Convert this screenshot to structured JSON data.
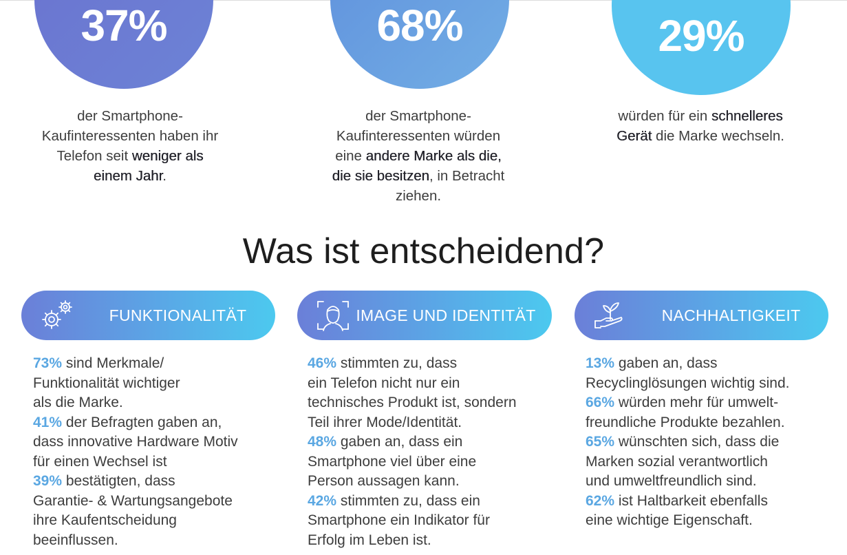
{
  "stats": [
    {
      "value": "37%",
      "lines": [
        [
          {
            "t": "der Smartphone-"
          }
        ],
        [
          {
            "t": "Kaufinteressenten haben ihr"
          }
        ],
        [
          {
            "t": "Telefon seit "
          },
          {
            "t": "weniger als",
            "b": true
          }
        ],
        [
          {
            "t": "einem Jahr",
            "b": true
          },
          {
            "t": "."
          }
        ]
      ]
    },
    {
      "value": "68%",
      "lines": [
        [
          {
            "t": "der Smartphone-"
          }
        ],
        [
          {
            "t": "Kaufinteressenten würden"
          }
        ],
        [
          {
            "t": "eine "
          },
          {
            "t": "andere Marke als die,",
            "b": true
          }
        ],
        [
          {
            "t": "die sie besitzen",
            "b": true
          },
          {
            "t": ", in Betracht"
          }
        ],
        [
          {
            "t": "ziehen."
          }
        ]
      ]
    },
    {
      "value": "29%",
      "lines": [
        [
          {
            "t": "würden für ein "
          },
          {
            "t": "schnelleres",
            "b": true
          }
        ],
        [
          {
            "t": "Gerät",
            "b": true
          },
          {
            "t": " die Marke wechseln."
          }
        ]
      ]
    }
  ],
  "heading": "Was ist entscheidend?",
  "categories": [
    {
      "label": "FUNKTIONALITÄT",
      "icon": "gears-icon",
      "lines": [
        [
          {
            "t": "73%",
            "n": true
          },
          {
            "t": " sind Merkmale/"
          }
        ],
        [
          {
            "t": "Funktionalität wichtiger"
          }
        ],
        [
          {
            "t": "als die Marke."
          }
        ],
        [
          {
            "t": "41%",
            "n": true
          },
          {
            "t": " der Befragten gaben an,"
          }
        ],
        [
          {
            "t": "dass innovative Hardware Motiv"
          }
        ],
        [
          {
            "t": "für einen Wechsel ist"
          }
        ],
        [
          {
            "t": "39%",
            "n": true
          },
          {
            "t": " bestätigten, dass"
          }
        ],
        [
          {
            "t": "Garantie- & Wartungsangebote"
          }
        ],
        [
          {
            "t": "ihre Kaufentscheidung"
          }
        ],
        [
          {
            "t": "beeinflussen."
          }
        ]
      ]
    },
    {
      "label": "IMAGE UND IDENTITÄT",
      "icon": "face-scan-icon",
      "lines": [
        [
          {
            "t": "46%",
            "n": true
          },
          {
            "t": " stimmten zu, dass"
          }
        ],
        [
          {
            "t": "ein Telefon nicht nur ein"
          }
        ],
        [
          {
            "t": "technisches Produkt ist, sondern"
          }
        ],
        [
          {
            "t": "Teil ihrer Mode/Identität."
          }
        ],
        [
          {
            "t": "48%",
            "n": true
          },
          {
            "t": " gaben an, dass ein"
          }
        ],
        [
          {
            "t": "Smartphone viel über eine"
          }
        ],
        [
          {
            "t": "Person aussagen kann."
          }
        ],
        [
          {
            "t": "42%",
            "n": true
          },
          {
            "t": " stimmten zu, dass ein"
          }
        ],
        [
          {
            "t": "Smartphone ein Indikator für"
          }
        ],
        [
          {
            "t": "Erfolg im Leben ist."
          }
        ]
      ]
    },
    {
      "label": "NACHHALTIGKEIT",
      "icon": "hand-plant-icon",
      "lines": [
        [
          {
            "t": "13%",
            "n": true
          },
          {
            "t": " gaben an, dass"
          }
        ],
        [
          {
            "t": "Recyclinglösungen wichtig sind."
          }
        ],
        [
          {
            "t": "66%",
            "n": true
          },
          {
            "t": " würden mehr für umwelt-"
          }
        ],
        [
          {
            "t": "freundliche Produkte bezahlen."
          }
        ],
        [
          {
            "t": "65%",
            "n": true
          },
          {
            "t": " wünschten sich, dass die"
          }
        ],
        [
          {
            "t": "Marken sozial verantwortlich"
          }
        ],
        [
          {
            "t": "und umweltfreundlich sind."
          }
        ],
        [
          {
            "t": "62%",
            "n": true
          },
          {
            "t": " ist Haltbarkeit ebenfalls"
          }
        ],
        [
          {
            "t": "eine wichtige Eigenschaft."
          }
        ]
      ]
    }
  ],
  "colors": {
    "accent_number": "#5aa7e2",
    "pill_gradient_start": "#6b7fd8",
    "pill_gradient_end": "#4cc9ef",
    "circle_1": "#6a72cf",
    "circle_2": "#5f8fdc",
    "circle_3": "#58c4ef"
  }
}
